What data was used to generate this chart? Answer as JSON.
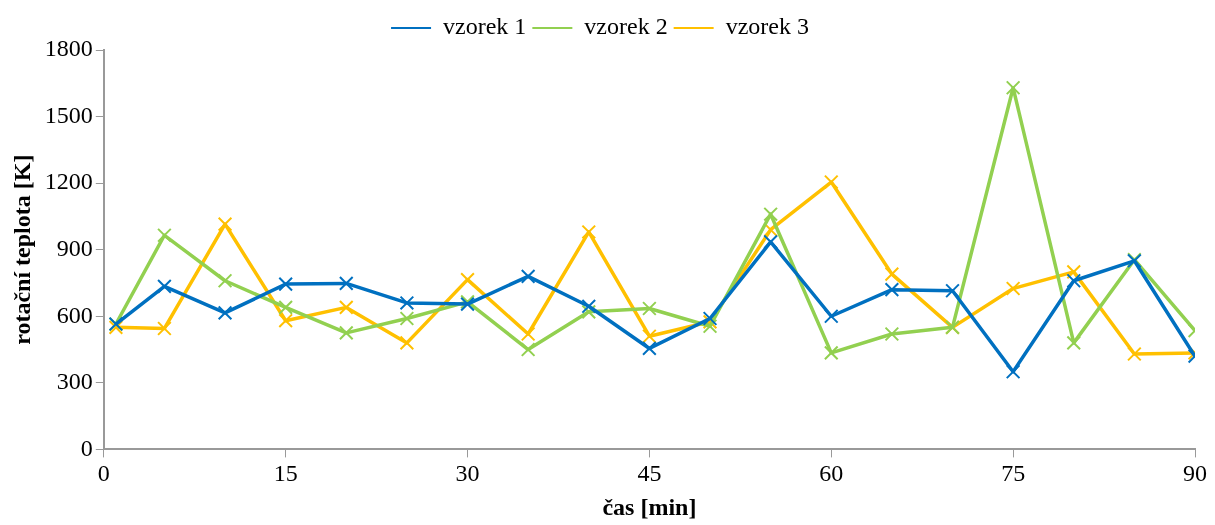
{
  "chart_data": {
    "type": "line",
    "xlabel": "čas [min]",
    "ylabel": "rotační teplota [K]",
    "x": [
      1,
      5,
      10,
      15,
      20,
      25,
      30,
      35,
      40,
      45,
      50,
      55,
      60,
      65,
      70,
      75,
      80,
      85,
      90
    ],
    "xlim": [
      0,
      90
    ],
    "xticks": [
      0,
      15,
      30,
      45,
      60,
      75,
      90
    ],
    "ylim": [
      0,
      1800
    ],
    "yticks": [
      0,
      300,
      600,
      900,
      1200,
      1500,
      1800
    ],
    "grid": false,
    "legend": "top",
    "marker": "cross",
    "line_style": "solid",
    "series": [
      {
        "name": "vzorek 1",
        "color": "#0070c0",
        "values": [
          565,
          735,
          615,
          745,
          748,
          660,
          655,
          780,
          645,
          455,
          590,
          935,
          600,
          720,
          715,
          350,
          760,
          850,
          420
        ]
      },
      {
        "name": "vzorek 2",
        "color": "#92d050",
        "values": [
          565,
          965,
          760,
          640,
          525,
          590,
          665,
          450,
          620,
          635,
          555,
          1060,
          435,
          520,
          550,
          1630,
          480,
          855,
          535
        ]
      },
      {
        "name": "vzorek 3",
        "color": "#ffc000",
        "values": [
          550,
          545,
          1015,
          580,
          640,
          480,
          765,
          520,
          980,
          510,
          575,
          990,
          1205,
          790,
          550,
          725,
          800,
          430,
          435
        ]
      }
    ]
  }
}
